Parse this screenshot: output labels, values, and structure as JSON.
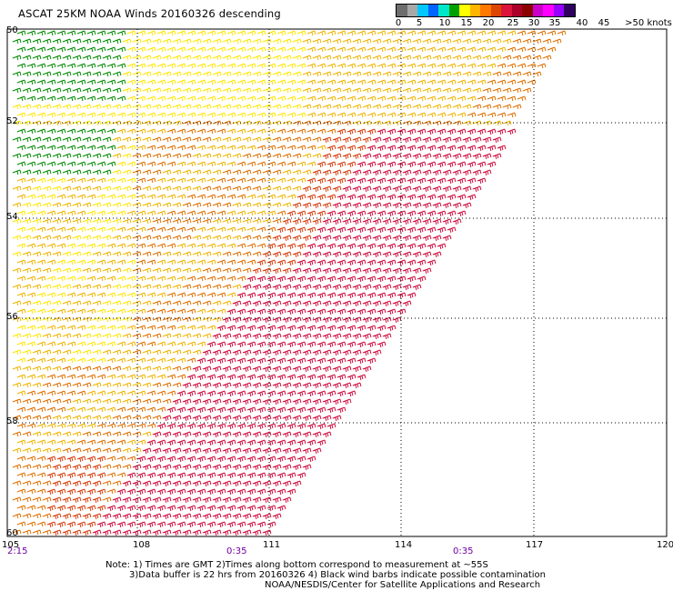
{
  "header": {
    "title": "ASCAT 25KM NOAA Winds 20160326 descending",
    "legend_labels": [
      "0",
      "5",
      "10",
      "15",
      "20",
      "25",
      "30",
      "35",
      "40",
      "45",
      ">50 knots"
    ],
    "legend_colors": [
      "#6e6e6e",
      "#a8a8a8",
      "#00c8ff",
      "#0064ff",
      "#00e6c8",
      "#00a000",
      "#ffff00",
      "#ffb400",
      "#ff7800",
      "#dc4600",
      "#dc143c",
      "#aa002a",
      "#8c0000",
      "#c800c8",
      "#ff00ff",
      "#9600ff",
      "#300060"
    ]
  },
  "map": {
    "lat_labels": [
      "50",
      "52",
      "54",
      "56",
      "58",
      "60"
    ],
    "lon_labels": [
      "105",
      "108",
      "111",
      "114",
      "117",
      "120"
    ],
    "time_labels": [
      "2:15",
      "0:35",
      "0:35"
    ],
    "barb_colors": {
      "green": "#008c00",
      "yellow": "#ffe600",
      "gold": "#f0b400",
      "orange": "#e07000",
      "red_orange": "#d84010",
      "crimson": "#d01040"
    }
  },
  "notes": {
    "line1": "Note: 1) Times are GMT 2)Times along bottom correspond to measurement at ~55S",
    "line2": "3)Data buffer is 22 hrs from 20160326 4) Black wind barbs indicate possible contamination",
    "line3": "NOAA/NESDIS/Center for Satellite Applications and Research"
  }
}
